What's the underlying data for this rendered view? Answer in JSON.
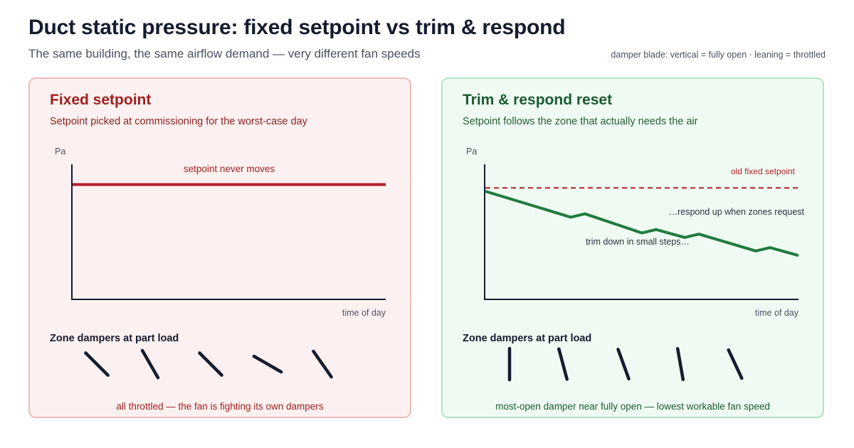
{
  "title": "Duct static pressure: fixed setpoint vs trim & respond",
  "subtitle": "The same building, the same airflow demand — very different fan speeds",
  "legend_note": "damper blade: vertical = fully open · leaning = throttled",
  "colors": {
    "fixed_accent": "#b3202a",
    "trim_accent": "#1f7a3e",
    "damper": "#141c2e",
    "axis": "#141c2e"
  },
  "panels": {
    "fixed": {
      "title": "Fixed setpoint",
      "subtitle": "Setpoint picked at commissioning for the worst-case day",
      "y_axis_label": "Pa",
      "x_axis_label": "time of day",
      "line_annotation": "setpoint never moves",
      "dampers_heading": "Zone dampers at part load",
      "dampers_caption": "all throttled — the fan is fighting its own dampers",
      "damper_tilts_deg": [
        -45,
        -30,
        -45,
        -60,
        -35
      ]
    },
    "trim": {
      "title": "Trim & respond reset",
      "subtitle": "Setpoint follows the zone that actually needs the air",
      "y_axis_label": "Pa",
      "x_axis_label": "time of day",
      "reference_label": "old fixed setpoint",
      "annotation_respond": "…respond up when zones request",
      "annotation_trim": "trim down in small steps…",
      "dampers_heading": "Zone dampers at part load",
      "dampers_caption": "most-open damper near fully open — lowest workable fan speed",
      "damper_tilts_deg": [
        0,
        -15,
        -20,
        -10,
        -25
      ]
    }
  },
  "chart_data": [
    {
      "type": "line",
      "panel": "Fixed setpoint",
      "x": [
        0,
        1,
        2,
        3,
        4,
        5,
        6,
        7,
        8,
        9,
        10,
        11
      ],
      "series": [
        {
          "values": [
            0.85,
            0.85,
            0.85,
            0.85,
            0.85,
            0.85,
            0.85,
            0.85,
            0.85,
            0.85,
            0.85,
            0.85
          ]
        }
      ],
      "ylim": [
        0,
        1
      ],
      "xlim": [
        0,
        11
      ],
      "xlabel": "time of day",
      "ylabel": "Pa",
      "grid": false
    },
    {
      "type": "line",
      "panel": "Trim & respond reset",
      "x": [
        0,
        6,
        7,
        11,
        12,
        14,
        15,
        19,
        20,
        22
      ],
      "series": [
        {
          "values": [
            0.96,
            0.73,
            0.76,
            0.59,
            0.62,
            0.55,
            0.58,
            0.43,
            0.46,
            0.39
          ]
        },
        {
          "name": "old fixed setpoint",
          "style": "dashed",
          "values": [
            0.99,
            0.99
          ],
          "x": [
            0,
            22
          ]
        }
      ],
      "ylim": [
        0,
        1.2
      ],
      "xlim": [
        0,
        22
      ],
      "xlabel": "time of day",
      "ylabel": "Pa",
      "grid": false
    }
  ]
}
